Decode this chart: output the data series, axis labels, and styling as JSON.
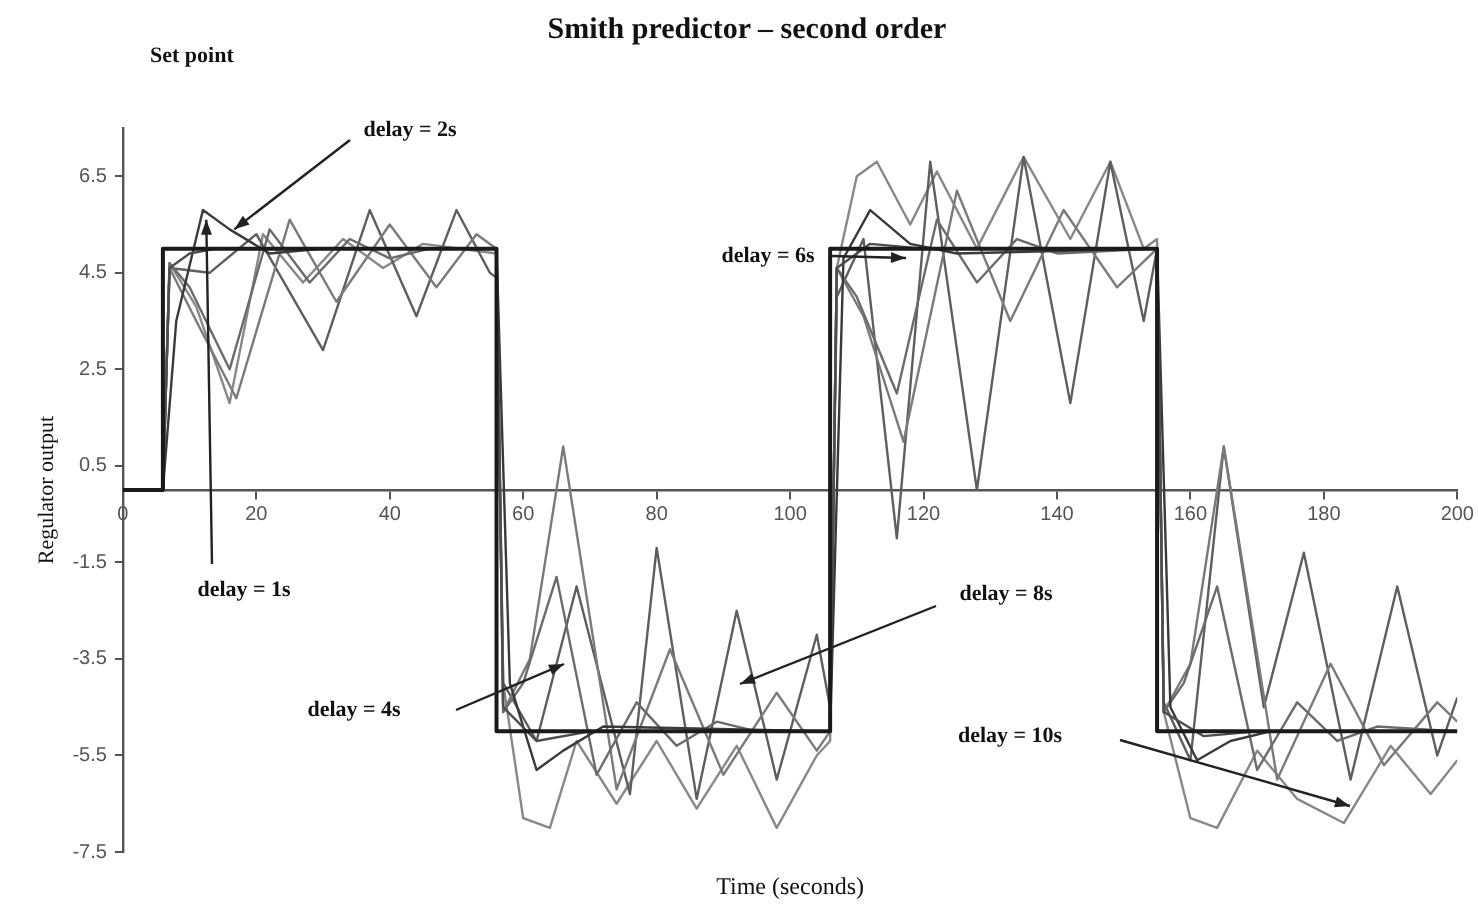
{
  "chart_data": {
    "type": "line",
    "title": "Smith predictor – second order",
    "xlabel": "Time (seconds)",
    "ylabel": "Regulator output",
    "xlim": [
      0,
      200
    ],
    "xticks": [
      0,
      20,
      40,
      60,
      80,
      100,
      120,
      140,
      160,
      180,
      200
    ],
    "ylim": [
      -7.5,
      7.5
    ],
    "yticks": [
      6.5,
      4.5,
      2.5,
      0.5,
      -1.5,
      -3.5,
      -5.5,
      -7.5
    ],
    "grid": false,
    "legend": false,
    "marker": "none",
    "line_style": "solid",
    "annotations": [
      "Set point",
      {
        "text": "delay = 2s",
        "x": 16.7,
        "y": 5.4
      },
      {
        "text": "delay = 1s",
        "x": 12.5,
        "y": 5.6
      },
      "delay = 6s",
      "delay = 4s",
      "delay = 8s",
      "delay = 10s"
    ],
    "series": [
      {
        "color": "#1a1a1a",
        "x": [
          0,
          6,
          6,
          56,
          56,
          106,
          106,
          155,
          155,
          200
        ],
        "values": [
          0,
          0,
          5,
          5,
          -5,
          -5,
          5,
          5,
          -5,
          -5
        ]
      },
      {
        "color": "#4d4d4d",
        "x": [
          6,
          7,
          10,
          14,
          56,
          57,
          62,
          70,
          106,
          107,
          112,
          120,
          155,
          156,
          162,
          170,
          200
        ],
        "values": [
          0,
          4.6,
          4.9,
          5.0,
          5.0,
          -4.5,
          -5.2,
          -5.0,
          -5.0,
          4.6,
          5.1,
          5.0,
          5.0,
          -4.6,
          -5.1,
          -5.0,
          -5.0
        ]
      },
      {
        "color": "#3a3a3a",
        "x": [
          6,
          8,
          12,
          16,
          22,
          30,
          56,
          58,
          62,
          66,
          72,
          106,
          108,
          112,
          118,
          125,
          155,
          157,
          161,
          166,
          172,
          200
        ],
        "values": [
          0,
          3.5,
          5.8,
          5.4,
          4.9,
          5.0,
          5.0,
          -4.0,
          -5.8,
          -5.4,
          -4.9,
          -5.0,
          4.8,
          5.8,
          5.1,
          4.9,
          5.0,
          -4.5,
          -5.6,
          -5.2,
          -5.0,
          -5.0
        ]
      },
      {
        "color": "#6b6b6b",
        "x": [
          6,
          7,
          10,
          16,
          22,
          28,
          34,
          40,
          46,
          56,
          57,
          60,
          65,
          71,
          77,
          83,
          89,
          95,
          106,
          107,
          110,
          116,
          122,
          128,
          134,
          140,
          155,
          156,
          159,
          164,
          170,
          176,
          182,
          188,
          200
        ],
        "values": [
          0,
          4.7,
          4.2,
          2.5,
          5.4,
          4.3,
          5.2,
          4.8,
          5.0,
          5.0,
          -4.6,
          -4.0,
          -1.8,
          -5.9,
          -4.4,
          -5.3,
          -4.8,
          -5.0,
          -5.0,
          4.6,
          4.0,
          2.0,
          5.6,
          4.3,
          5.2,
          4.9,
          5.0,
          -4.6,
          -4.0,
          -2.0,
          -5.8,
          -4.4,
          -5.2,
          -4.9,
          -5.0
        ]
      },
      {
        "color": "#7a7a7a",
        "x": [
          6,
          7,
          11,
          17,
          25,
          32,
          40,
          47,
          53,
          56,
          57,
          61,
          66,
          74,
          82,
          90,
          98,
          104,
          106,
          107,
          111,
          117,
          125,
          133,
          141,
          149,
          155,
          156,
          160,
          165,
          173,
          181,
          189,
          197,
          200
        ],
        "values": [
          0,
          4.6,
          3.5,
          1.9,
          5.6,
          3.9,
          5.5,
          4.2,
          5.3,
          5.0,
          -4.6,
          -3.5,
          0.9,
          -6.2,
          -3.3,
          -5.9,
          -4.2,
          -5.4,
          -5.0,
          4.6,
          3.6,
          1.0,
          6.2,
          3.5,
          5.8,
          4.2,
          5.0,
          -4.6,
          -3.6,
          0.9,
          -6.0,
          -3.6,
          -5.7,
          -4.4,
          -4.8
        ]
      },
      {
        "color": "#5e5e5e",
        "x": [
          6,
          7,
          13,
          20,
          30,
          37,
          44,
          50,
          55,
          56,
          57,
          62,
          68,
          76,
          80,
          86,
          92,
          98,
          104,
          106,
          107,
          111,
          116,
          121,
          128,
          135,
          142,
          148,
          153,
          155,
          156,
          160,
          165,
          171,
          177,
          184,
          191,
          197,
          200
        ],
        "values": [
          0,
          4.6,
          4.5,
          5.3,
          2.9,
          5.8,
          3.6,
          5.8,
          4.5,
          4.4,
          -4.0,
          -5.2,
          -2.0,
          -6.3,
          -1.2,
          -6.4,
          -2.5,
          -6.0,
          -3.0,
          -4.5,
          4.0,
          5.2,
          -1.0,
          6.8,
          0.0,
          6.9,
          1.8,
          6.8,
          3.5,
          5.0,
          -4.4,
          -5.6,
          0.9,
          -4.5,
          -1.3,
          -6.0,
          -2.0,
          -5.5,
          -4.3
        ]
      },
      {
        "color": "#888888",
        "x": [
          6,
          7,
          11,
          16,
          21,
          27,
          33,
          39,
          45,
          56,
          57,
          60,
          64,
          68,
          74,
          80,
          86,
          92,
          98,
          104,
          106,
          107,
          110,
          113,
          118,
          122,
          128,
          135,
          142,
          148,
          153,
          155,
          156,
          160,
          164,
          170,
          176,
          183,
          190,
          196,
          200
        ],
        "values": [
          0,
          4.7,
          3.8,
          1.8,
          5.3,
          4.3,
          5.2,
          4.6,
          5.1,
          4.9,
          -4.0,
          -6.8,
          -7.0,
          -5.2,
          -6.5,
          -5.2,
          -6.6,
          -5.3,
          -7.0,
          -5.5,
          -5.2,
          4.6,
          6.5,
          6.8,
          5.5,
          6.6,
          5.0,
          6.9,
          5.2,
          6.8,
          5.0,
          5.2,
          -4.6,
          -6.8,
          -7.0,
          -5.4,
          -6.4,
          -6.9,
          -5.3,
          -6.3,
          -5.6
        ]
      }
    ]
  }
}
